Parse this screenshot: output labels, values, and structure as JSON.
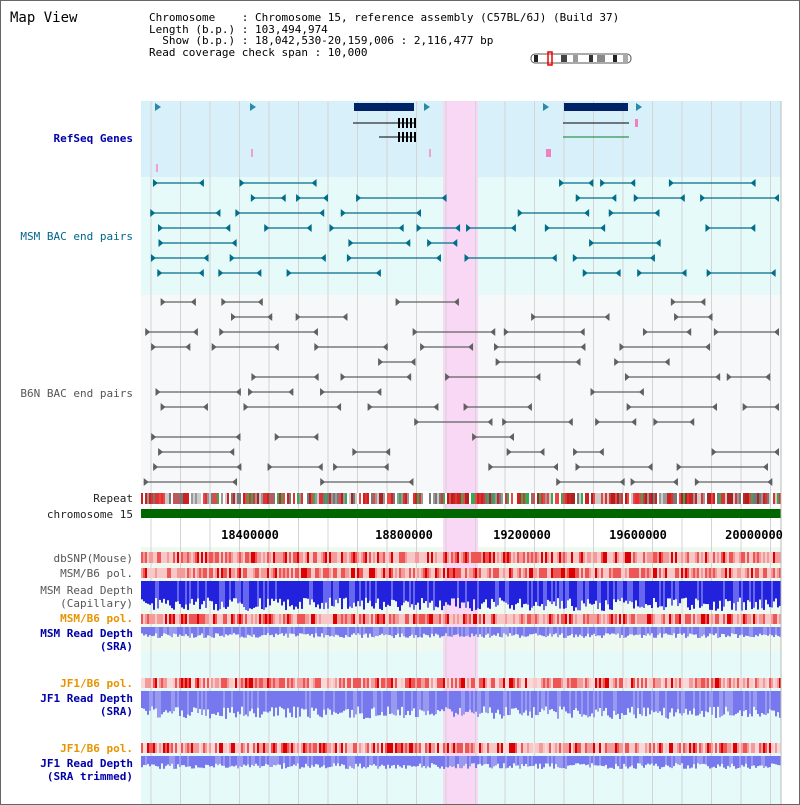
{
  "window": {
    "title": "Map View"
  },
  "header": {
    "lines": [
      "Chromosome    : Chromosome 15, reference assembly (C57BL/6J) (Build 37)",
      "Length (b.p.) : 103,494,974",
      "  Show (b.p.) : 18,042,530-20,159,006 : 2,116,477 bp",
      "Read coverage check span : 10,000"
    ]
  },
  "tracks": {
    "refseq": "RefSeq Genes",
    "msm_bac": "MSM BAC end pairs",
    "b6n_bac": "B6N BAC end pairs",
    "repeat": "Repeat",
    "chromosome": "chromosome 15",
    "dbsnp": "dbSNP(Mouse)",
    "msm_b6_pol_1": "MSM/B6 pol.",
    "msm_depth_cap_1": "MSM Read Depth",
    "msm_depth_cap_2": "(Capillary)",
    "msm_b6_pol_2": "MSM/B6 pol.",
    "msm_depth_sra_1": "MSM Read Depth",
    "msm_depth_sra_2": "(SRA)",
    "jf1_b6_pol_1": "JF1/B6 pol.",
    "jf1_depth_sra_1": "JF1 Read Depth",
    "jf1_depth_sra_2": "(SRA)",
    "jf1_b6_pol_2": "JF1/B6 pol.",
    "jf1_depth_trim_1": "JF1 Read Depth",
    "jf1_depth_trim_2": "(SRA trimmed)"
  },
  "axis": {
    "ticks": [
      "18400000",
      "18800000",
      "19200000",
      "19600000",
      "20000000"
    ]
  },
  "colors": {
    "refseq_bg": "#d8f0fa",
    "bac_bg": "#e6fafa",
    "highlight": "#f8d8f4",
    "chrom_green": "#006600",
    "gene_navy": "#002266",
    "bac_teal": "#006e8a",
    "bac_gray": "#606060",
    "snp_red": "#ee2222",
    "depth_blue": "#2222dd",
    "depth_light": "#7777ee"
  }
}
